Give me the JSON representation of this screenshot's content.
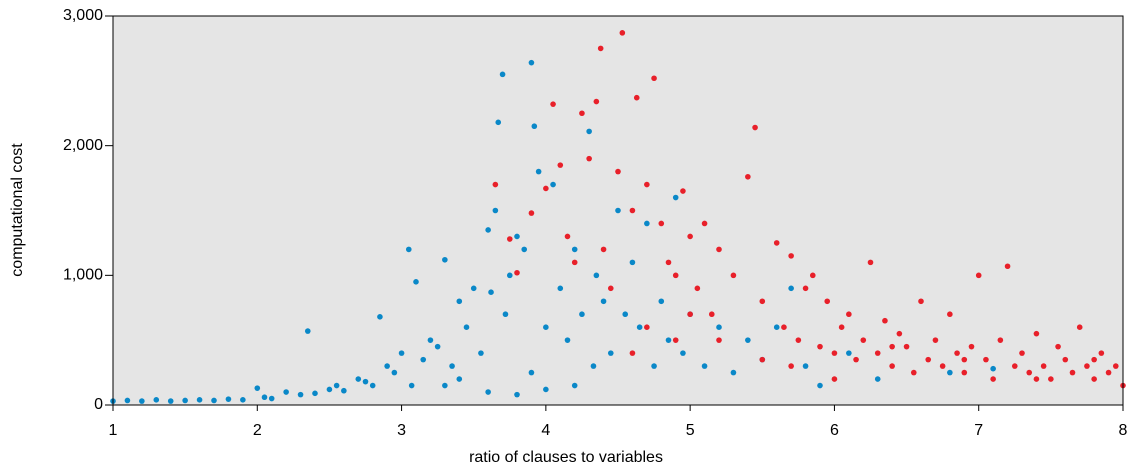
{
  "chart_data": {
    "type": "scatter",
    "xlabel": "ratio of clauses to variables",
    "ylabel": "computational cost",
    "xlim": [
      1,
      8
    ],
    "ylim": [
      0,
      3000
    ],
    "xticks": [
      1,
      2,
      3,
      4,
      5,
      6,
      7,
      8
    ],
    "yticks": [
      0,
      {
        "value": 1000,
        "label": "1,000"
      },
      {
        "value": 2000,
        "label": "2,000"
      },
      {
        "value": 3000,
        "label": "3,000"
      }
    ],
    "background": "#e5e5e5",
    "series": [
      {
        "color": "#0a88c8",
        "x": [
          1.0,
          1.1,
          1.2,
          1.3,
          1.4,
          1.5,
          1.6,
          1.7,
          1.8,
          1.9,
          2.0,
          2.05,
          2.1,
          2.2,
          2.3,
          2.35,
          2.4,
          2.5,
          2.55,
          2.6,
          2.7,
          2.75,
          2.8,
          2.85,
          2.9,
          2.95,
          3.0,
          3.05,
          3.07,
          3.1,
          3.15,
          3.2,
          3.25,
          3.3,
          3.35,
          3.4,
          3.45,
          3.5,
          3.55,
          3.6,
          3.62,
          3.65,
          3.67,
          3.7,
          3.72,
          3.75,
          3.8,
          3.85,
          3.9,
          3.92,
          3.95,
          4.0,
          4.05,
          4.1,
          4.15,
          4.2,
          4.25,
          4.3,
          4.33,
          4.35,
          4.4,
          4.45,
          4.5,
          4.55,
          4.6,
          4.65,
          4.7,
          4.75,
          4.8,
          4.85,
          4.9,
          4.95,
          5.0,
          5.1,
          5.2,
          5.3,
          5.4,
          5.5,
          5.6,
          5.7,
          5.8,
          5.9,
          6.1,
          6.3,
          6.8,
          7.1,
          3.3,
          3.6,
          3.8,
          4.0,
          4.2,
          3.4,
          3.9
        ],
        "values": [
          30,
          35,
          30,
          40,
          30,
          35,
          40,
          35,
          45,
          40,
          130,
          60,
          50,
          100,
          80,
          570,
          90,
          120,
          150,
          110,
          200,
          180,
          150,
          680,
          300,
          250,
          400,
          1200,
          150,
          950,
          350,
          500,
          450,
          1120,
          300,
          800,
          600,
          900,
          400,
          1350,
          870,
          1500,
          2180,
          2550,
          700,
          1000,
          1300,
          1200,
          2640,
          2150,
          1800,
          600,
          1700,
          900,
          500,
          1200,
          700,
          2110,
          300,
          1000,
          800,
          400,
          1500,
          700,
          1100,
          600,
          1400,
          300,
          800,
          500,
          1600,
          400,
          700,
          300,
          600,
          250,
          500,
          350,
          600,
          900,
          300,
          150,
          400,
          200,
          250,
          280,
          150,
          100,
          80,
          120,
          150,
          200,
          250
        ]
      },
      {
        "color": "#e8202a",
        "x": [
          3.65,
          3.75,
          3.8,
          3.9,
          4.0,
          4.05,
          4.1,
          4.15,
          4.2,
          4.25,
          4.3,
          4.35,
          4.38,
          4.4,
          4.45,
          4.5,
          4.53,
          4.6,
          4.63,
          4.7,
          4.75,
          4.8,
          4.85,
          4.9,
          4.95,
          5.0,
          5.05,
          5.1,
          5.15,
          5.2,
          5.3,
          5.4,
          5.45,
          5.5,
          5.6,
          5.65,
          5.7,
          5.75,
          5.8,
          5.85,
          5.9,
          5.95,
          6.0,
          6.05,
          6.1,
          6.15,
          6.2,
          6.25,
          6.3,
          6.35,
          6.4,
          6.45,
          6.5,
          6.55,
          6.6,
          6.65,
          6.7,
          6.75,
          6.8,
          6.85,
          6.9,
          6.95,
          7.0,
          7.05,
          7.1,
          7.15,
          7.2,
          7.25,
          7.3,
          7.35,
          7.4,
          7.45,
          7.5,
          7.55,
          7.6,
          7.65,
          7.7,
          7.75,
          7.8,
          7.85,
          7.9,
          7.95,
          8.0,
          4.6,
          4.7,
          4.9,
          5.0,
          5.2,
          5.5,
          5.7,
          6.0,
          6.4,
          6.9,
          7.4,
          7.8
        ],
        "values": [
          1700,
          1280,
          1020,
          1480,
          1670,
          2320,
          1850,
          1300,
          1100,
          2250,
          1900,
          2340,
          2750,
          1200,
          900,
          1800,
          2870,
          1500,
          2370,
          1700,
          2520,
          1400,
          1100,
          1000,
          1650,
          1300,
          900,
          1400,
          700,
          1200,
          1000,
          1760,
          2140,
          800,
          1250,
          600,
          1150,
          500,
          900,
          1000,
          450,
          800,
          400,
          600,
          700,
          350,
          500,
          1100,
          400,
          650,
          300,
          550,
          450,
          250,
          800,
          350,
          500,
          300,
          700,
          400,
          250,
          450,
          1000,
          350,
          200,
          500,
          1070,
          300,
          400,
          250,
          550,
          300,
          200,
          450,
          350,
          250,
          600,
          300,
          200,
          400,
          250,
          300,
          150,
          400,
          600,
          500,
          700,
          500,
          350,
          300,
          200,
          450,
          350,
          200,
          350
        ]
      }
    ]
  }
}
